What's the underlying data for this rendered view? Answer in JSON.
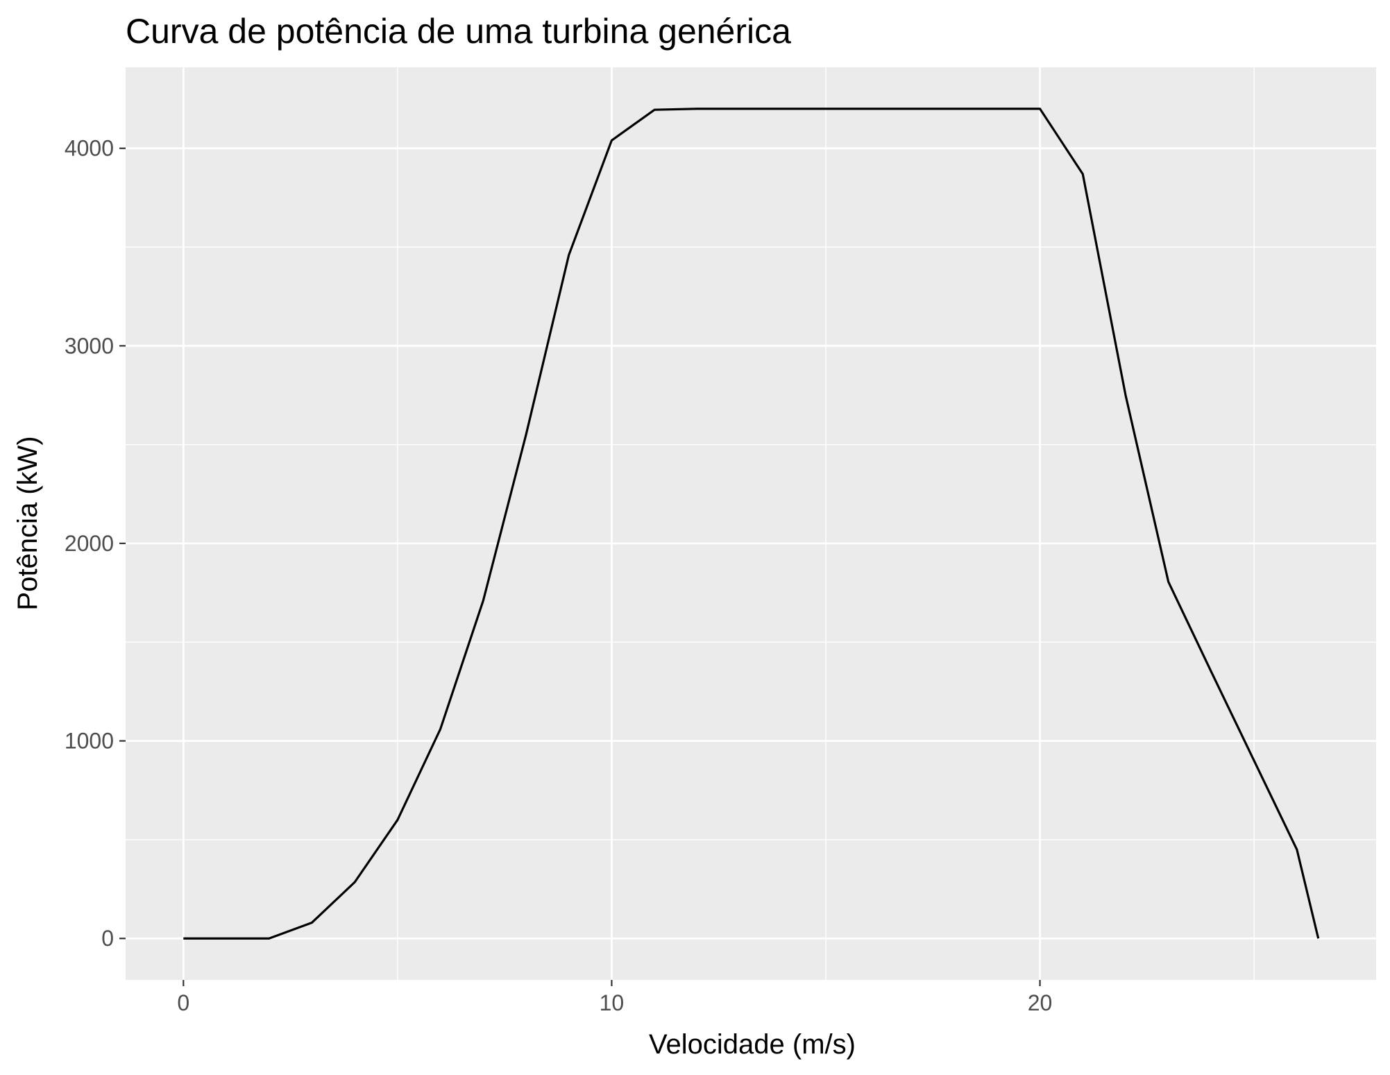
{
  "chart_data": {
    "type": "line",
    "title": "Curva de potência de uma turbina genérica",
    "xlabel": "Velocidade (m/s)",
    "ylabel": "Potência (kW)",
    "xlim": [
      -1.35,
      27.85
    ],
    "ylim": [
      -210,
      4410
    ],
    "x_ticks": [
      0,
      10,
      20
    ],
    "x_tick_labels": [
      "0",
      "10",
      "20"
    ],
    "y_ticks": [
      0,
      1000,
      2000,
      3000,
      4000
    ],
    "y_tick_labels": [
      "0",
      "1000",
      "2000",
      "3000",
      "4000"
    ],
    "x_minor_grid": [
      5,
      15,
      25
    ],
    "y_minor_grid": [
      500,
      1500,
      2500,
      3500
    ],
    "grid": true,
    "legend": "none",
    "colors": {
      "panel": "#ebebeb",
      "grid": "#ffffff",
      "line": "#000000",
      "tick_text": "#4d4d4d",
      "tick_mark": "#333333"
    },
    "series": [
      {
        "x": [
          0,
          1,
          2,
          3,
          4,
          5,
          6,
          7,
          8,
          9,
          10,
          11,
          12,
          13,
          14,
          15,
          16,
          17,
          18,
          19,
          20,
          21,
          22,
          23,
          24,
          25,
          26,
          26.5
        ],
        "values": [
          0,
          0,
          0,
          80,
          285,
          600,
          1060,
          1710,
          2550,
          3460,
          4040,
          4195,
          4200,
          4200,
          4200,
          4200,
          4200,
          4200,
          4200,
          4200,
          4200,
          3870,
          2750,
          1805,
          1350,
          900,
          450,
          0
        ]
      }
    ]
  }
}
